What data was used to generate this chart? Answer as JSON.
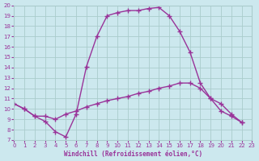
{
  "xlabel": "Windchill (Refroidissement éolien,°C)",
  "xlim": [
    0,
    23
  ],
  "ylim": [
    7,
    20
  ],
  "xticks": [
    0,
    1,
    2,
    3,
    4,
    5,
    6,
    7,
    8,
    9,
    10,
    11,
    12,
    13,
    14,
    15,
    16,
    17,
    18,
    19,
    20,
    21,
    22,
    23
  ],
  "yticks": [
    7,
    8,
    9,
    10,
    11,
    12,
    13,
    14,
    15,
    16,
    17,
    18,
    19,
    20
  ],
  "background_color": "#cce8ee",
  "grid_color": "#aacccc",
  "line_color": "#993399",
  "line1_x": [
    0,
    1,
    2,
    3,
    4,
    5,
    6,
    7,
    8,
    9,
    10,
    11,
    12,
    13,
    14,
    15,
    16,
    17,
    18,
    19,
    20,
    21,
    22
  ],
  "line1_y": [
    10.5,
    10.0,
    9.3,
    8.8,
    7.8,
    7.3,
    9.5,
    14.1,
    17.0,
    19.0,
    19.3,
    19.5,
    19.5,
    19.7,
    19.8,
    19.0,
    17.5,
    15.5,
    12.5,
    11.0,
    9.8,
    9.3,
    8.7
  ],
  "line2_x": [
    0,
    1,
    2,
    3,
    4,
    5,
    6,
    7,
    8,
    9,
    10,
    11,
    12,
    13,
    14,
    15,
    16,
    17,
    18,
    19,
    20,
    21,
    22
  ],
  "line2_y": [
    10.5,
    10.0,
    9.3,
    9.3,
    9.0,
    9.5,
    9.8,
    10.2,
    10.5,
    10.8,
    11.0,
    11.2,
    11.5,
    11.7,
    12.0,
    12.2,
    12.5,
    12.5,
    12.0,
    11.0,
    10.5,
    9.5,
    8.7
  ]
}
